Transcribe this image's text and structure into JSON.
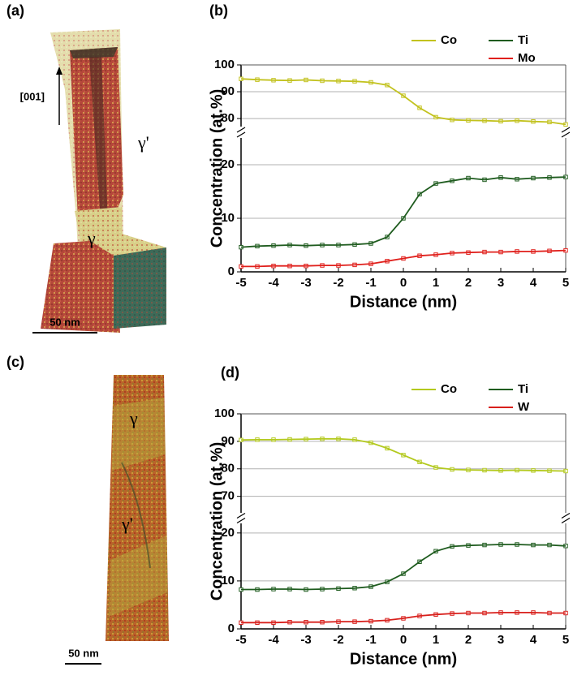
{
  "figure": {
    "panels": [
      "(a)",
      "(b)",
      "(c)",
      "(d)"
    ],
    "direction": "[001]",
    "phase_a_upper": "γ'",
    "phase_a_lower": "γ",
    "phase_c_upper": "γ",
    "phase_c_lower": "γ'",
    "scale_a": "50 nm",
    "scale_c": "50 nm"
  },
  "chart_data": [
    {
      "type": "line",
      "xlabel": "Distance  (nm)",
      "ylabel": "Concentration (at.%)",
      "x": [
        -5,
        -4.5,
        -4,
        -3.5,
        -3,
        -2.5,
        -2,
        -1.5,
        -1,
        -0.5,
        0,
        0.5,
        1,
        1.5,
        2,
        2.5,
        3,
        3.5,
        4,
        4.5,
        5
      ],
      "xlim": [
        -5,
        5
      ],
      "xticks": [
        -5,
        -4,
        -3,
        -2,
        -1,
        0,
        1,
        2,
        3,
        4,
        5
      ],
      "y_segments": [
        {
          "ylim": [
            0,
            25
          ],
          "yticks": [
            0,
            10,
            20
          ]
        },
        {
          "ylim": [
            77,
            100
          ],
          "yticks": [
            80,
            90,
            100
          ]
        }
      ],
      "grid": true,
      "series": [
        {
          "name": "Co",
          "color": "#c2c21e",
          "values": [
            94.8,
            94.5,
            94.3,
            94.2,
            94.4,
            94.1,
            94.0,
            93.9,
            93.5,
            92.5,
            88.5,
            84,
            80.5,
            79.5,
            79.3,
            79.2,
            79.0,
            79.2,
            78.9,
            78.7,
            77.8
          ]
        },
        {
          "name": "Ti",
          "color": "#1f5c1f",
          "values": [
            4.6,
            4.8,
            4.9,
            5.0,
            4.9,
            5.0,
            5.0,
            5.1,
            5.3,
            6.5,
            10,
            14.5,
            16.5,
            17.0,
            17.5,
            17.2,
            17.6,
            17.3,
            17.5,
            17.6,
            17.7
          ]
        },
        {
          "name": "Mo",
          "color": "#e0201c",
          "values": [
            1.0,
            1.0,
            1.1,
            1.1,
            1.1,
            1.2,
            1.2,
            1.3,
            1.5,
            2.0,
            2.5,
            3.0,
            3.2,
            3.5,
            3.6,
            3.7,
            3.7,
            3.8,
            3.8,
            3.9,
            4.0
          ]
        }
      ]
    },
    {
      "type": "line",
      "xlabel": "Distance  (nm)",
      "ylabel": "Concentration (at.%)",
      "x": [
        -5,
        -4.5,
        -4,
        -3.5,
        -3,
        -2.5,
        -2,
        -1.5,
        -1,
        -0.5,
        0,
        0.5,
        1,
        1.5,
        2,
        2.5,
        3,
        3.5,
        4,
        4.5,
        5
      ],
      "xlim": [
        -5,
        5
      ],
      "xticks": [
        -5,
        -4,
        -3,
        -2,
        -1,
        0,
        1,
        2,
        3,
        4,
        5
      ],
      "y_segments": [
        {
          "ylim": [
            0,
            22
          ],
          "yticks": [
            0,
            10,
            20
          ]
        },
        {
          "ylim": [
            64,
            100
          ],
          "yticks": [
            70,
            80,
            90,
            100
          ]
        }
      ],
      "grid": true,
      "series": [
        {
          "name": "Co",
          "color": "#b3c91e",
          "values": [
            90.5,
            90.6,
            90.6,
            90.7,
            90.8,
            90.9,
            90.9,
            90.6,
            89.5,
            87.5,
            85,
            82.5,
            80.5,
            79.8,
            79.6,
            79.5,
            79.4,
            79.5,
            79.4,
            79.3,
            79.2
          ]
        },
        {
          "name": "Ti",
          "color": "#1f5c1f",
          "values": [
            8.2,
            8.2,
            8.3,
            8.3,
            8.2,
            8.3,
            8.4,
            8.5,
            8.8,
            9.8,
            11.5,
            14,
            16.2,
            17.2,
            17.4,
            17.5,
            17.6,
            17.6,
            17.5,
            17.5,
            17.3
          ]
        },
        {
          "name": "W",
          "color": "#d8201c",
          "values": [
            1.3,
            1.3,
            1.3,
            1.4,
            1.4,
            1.4,
            1.5,
            1.5,
            1.6,
            1.8,
            2.2,
            2.7,
            3.0,
            3.2,
            3.3,
            3.3,
            3.4,
            3.4,
            3.4,
            3.3,
            3.3
          ]
        }
      ]
    }
  ]
}
